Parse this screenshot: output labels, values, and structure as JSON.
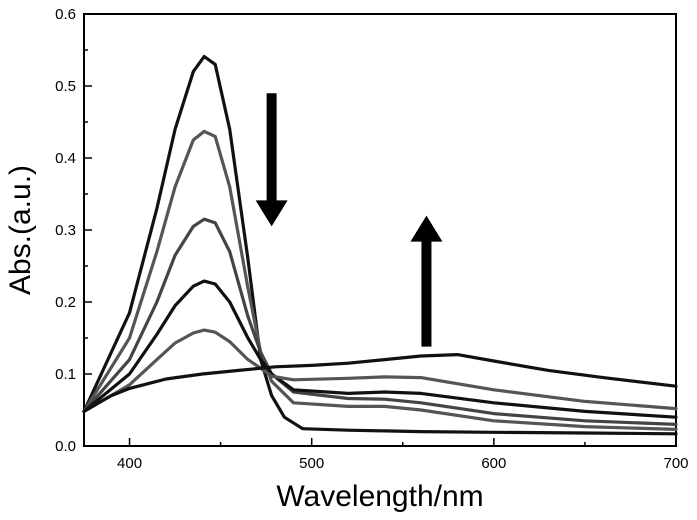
{
  "chart_data": {
    "type": "line",
    "xlabel": "Wavelength/nm",
    "ylabel": "Abs.(a.u.)",
    "xlim": [
      375,
      700
    ],
    "ylim": [
      0.0,
      0.6
    ],
    "xticks": [
      400,
      500,
      600,
      700
    ],
    "yticks": [
      0.0,
      0.1,
      0.2,
      0.3,
      0.4,
      0.5,
      0.6
    ],
    "grid": false,
    "legend": "none",
    "series": [
      {
        "color": "#111111",
        "points": [
          [
            375,
            0.048
          ],
          [
            400,
            0.185
          ],
          [
            415,
            0.33
          ],
          [
            425,
            0.44
          ],
          [
            435,
            0.52
          ],
          [
            441,
            0.541
          ],
          [
            447,
            0.53
          ],
          [
            455,
            0.44
          ],
          [
            465,
            0.26
          ],
          [
            472,
            0.12
          ],
          [
            478,
            0.07
          ],
          [
            485,
            0.04
          ],
          [
            495,
            0.024
          ],
          [
            520,
            0.022
          ],
          [
            540,
            0.021
          ],
          [
            560,
            0.02
          ],
          [
            600,
            0.019
          ],
          [
            650,
            0.018
          ],
          [
            700,
            0.017
          ]
        ]
      },
      {
        "color": "#555555",
        "points": [
          [
            375,
            0.048
          ],
          [
            400,
            0.15
          ],
          [
            415,
            0.27
          ],
          [
            425,
            0.36
          ],
          [
            435,
            0.425
          ],
          [
            441,
            0.437
          ],
          [
            447,
            0.43
          ],
          [
            455,
            0.36
          ],
          [
            465,
            0.22
          ],
          [
            472,
            0.13
          ],
          [
            478,
            0.09
          ],
          [
            490,
            0.06
          ],
          [
            520,
            0.055
          ],
          [
            540,
            0.055
          ],
          [
            560,
            0.05
          ],
          [
            600,
            0.035
          ],
          [
            650,
            0.027
          ],
          [
            700,
            0.023
          ]
        ]
      },
      {
        "color": "#444444",
        "points": [
          [
            375,
            0.048
          ],
          [
            400,
            0.12
          ],
          [
            415,
            0.2
          ],
          [
            425,
            0.265
          ],
          [
            435,
            0.305
          ],
          [
            441,
            0.315
          ],
          [
            447,
            0.31
          ],
          [
            455,
            0.27
          ],
          [
            465,
            0.18
          ],
          [
            472,
            0.13
          ],
          [
            478,
            0.1
          ],
          [
            490,
            0.075
          ],
          [
            520,
            0.066
          ],
          [
            540,
            0.065
          ],
          [
            560,
            0.06
          ],
          [
            600,
            0.045
          ],
          [
            650,
            0.035
          ],
          [
            700,
            0.03
          ]
        ]
      },
      {
        "color": "#111111",
        "points": [
          [
            375,
            0.048
          ],
          [
            400,
            0.1
          ],
          [
            415,
            0.155
          ],
          [
            425,
            0.195
          ],
          [
            435,
            0.222
          ],
          [
            441,
            0.229
          ],
          [
            447,
            0.225
          ],
          [
            455,
            0.2
          ],
          [
            465,
            0.15
          ],
          [
            472,
            0.12
          ],
          [
            478,
            0.1
          ],
          [
            490,
            0.078
          ],
          [
            520,
            0.073
          ],
          [
            540,
            0.075
          ],
          [
            560,
            0.073
          ],
          [
            600,
            0.06
          ],
          [
            650,
            0.048
          ],
          [
            700,
            0.04
          ]
        ]
      },
      {
        "color": "#555555",
        "points": [
          [
            375,
            0.048
          ],
          [
            400,
            0.085
          ],
          [
            415,
            0.12
          ],
          [
            425,
            0.143
          ],
          [
            435,
            0.157
          ],
          [
            441,
            0.161
          ],
          [
            447,
            0.158
          ],
          [
            455,
            0.145
          ],
          [
            465,
            0.12
          ],
          [
            472,
            0.108
          ],
          [
            478,
            0.097
          ],
          [
            490,
            0.092
          ],
          [
            520,
            0.094
          ],
          [
            540,
            0.096
          ],
          [
            560,
            0.095
          ],
          [
            600,
            0.078
          ],
          [
            650,
            0.062
          ],
          [
            700,
            0.052
          ]
        ]
      },
      {
        "color": "#111111",
        "points": [
          [
            375,
            0.048
          ],
          [
            390,
            0.07
          ],
          [
            400,
            0.08
          ],
          [
            420,
            0.093
          ],
          [
            440,
            0.1
          ],
          [
            460,
            0.105
          ],
          [
            480,
            0.11
          ],
          [
            500,
            0.112
          ],
          [
            520,
            0.115
          ],
          [
            540,
            0.12
          ],
          [
            560,
            0.125
          ],
          [
            580,
            0.127
          ],
          [
            600,
            0.118
          ],
          [
            630,
            0.105
          ],
          [
            660,
            0.095
          ],
          [
            700,
            0.083
          ]
        ]
      }
    ],
    "annotations": [
      {
        "type": "arrow",
        "direction": "down",
        "x": 478,
        "y_from": 0.49,
        "y_to": 0.305
      },
      {
        "type": "arrow",
        "direction": "up",
        "x": 563,
        "y_from": 0.138,
        "y_to": 0.32
      }
    ]
  }
}
